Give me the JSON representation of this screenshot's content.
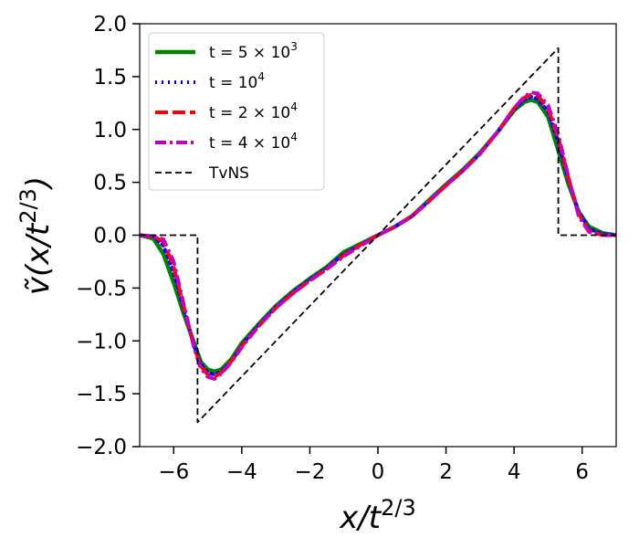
{
  "chart_data": {
    "type": "line",
    "xlabel": "x/t",
    "xlabel_exponent": "2/3",
    "ylabel_prefix": "ṽ(x/t",
    "ylabel_exponent": "2/3",
    "ylabel_suffix": ")",
    "xlim": [
      -7,
      7
    ],
    "ylim": [
      -2,
      2
    ],
    "xticks": [
      -6,
      -4,
      -2,
      0,
      2,
      4,
      6
    ],
    "xtick_labels": [
      "−6",
      "−4",
      "−2",
      "0",
      "2",
      "4",
      "6"
    ],
    "yticks": [
      -2,
      -1.5,
      -1,
      -0.5,
      0,
      0.5,
      1,
      1.5,
      2
    ],
    "ytick_labels": [
      "−2.0",
      "−1.5",
      "−1.0",
      "−0.5",
      "0.0",
      "0.5",
      "1.0",
      "1.5",
      "2.0"
    ],
    "grid": false,
    "legend_position": "top-left",
    "series": [
      {
        "name": "t = 5 × 10³",
        "legend": {
          "base": "t = 5 × 10",
          "sup": "3"
        },
        "color": "#008000",
        "style": "solid",
        "points": [
          [
            -7,
            0
          ],
          [
            -6.6,
            -0.03
          ],
          [
            -6.3,
            -0.18
          ],
          [
            -6.0,
            -0.45
          ],
          [
            -5.7,
            -0.75
          ],
          [
            -5.4,
            -1.02
          ],
          [
            -5.2,
            -1.2
          ],
          [
            -5.0,
            -1.27
          ],
          [
            -4.8,
            -1.29
          ],
          [
            -4.6,
            -1.27
          ],
          [
            -4.3,
            -1.17
          ],
          [
            -4.0,
            -1.02
          ],
          [
            -3.5,
            -0.84
          ],
          [
            -3.0,
            -0.67
          ],
          [
            -2.5,
            -0.53
          ],
          [
            -2.0,
            -0.41
          ],
          [
            -1.5,
            -0.3
          ],
          [
            -1.0,
            -0.16
          ],
          [
            -0.5,
            -0.08
          ],
          [
            0,
            0
          ],
          [
            0.5,
            0.08
          ],
          [
            1.0,
            0.18
          ],
          [
            1.5,
            0.33
          ],
          [
            2.0,
            0.48
          ],
          [
            2.5,
            0.62
          ],
          [
            3.0,
            0.78
          ],
          [
            3.5,
            0.97
          ],
          [
            4.0,
            1.18
          ],
          [
            4.3,
            1.26
          ],
          [
            4.5,
            1.28
          ],
          [
            4.7,
            1.26
          ],
          [
            5.0,
            1.12
          ],
          [
            5.3,
            0.8
          ],
          [
            5.6,
            0.48
          ],
          [
            5.9,
            0.22
          ],
          [
            6.2,
            0.08
          ],
          [
            6.6,
            0.02
          ],
          [
            7,
            0
          ]
        ]
      },
      {
        "name": "t = 10⁴",
        "legend": {
          "base": "t = 10",
          "sup": "4"
        },
        "color": "#0000ff",
        "style": "dotted",
        "points": [
          [
            -7,
            0
          ],
          [
            -6.6,
            -0.01
          ],
          [
            -6.3,
            -0.1
          ],
          [
            -6.0,
            -0.35
          ],
          [
            -5.7,
            -0.7
          ],
          [
            -5.4,
            -1.05
          ],
          [
            -5.2,
            -1.22
          ],
          [
            -5.0,
            -1.3
          ],
          [
            -4.8,
            -1.32
          ],
          [
            -4.6,
            -1.29
          ],
          [
            -4.3,
            -1.19
          ],
          [
            -4.0,
            -1.04
          ],
          [
            -3.5,
            -0.85
          ],
          [
            -3.0,
            -0.68
          ],
          [
            -2.5,
            -0.54
          ],
          [
            -2.0,
            -0.42
          ],
          [
            -1.5,
            -0.31
          ],
          [
            -1.0,
            -0.18
          ],
          [
            -0.5,
            -0.09
          ],
          [
            0,
            0
          ],
          [
            0.5,
            0.08
          ],
          [
            1.0,
            0.18
          ],
          [
            1.5,
            0.32
          ],
          [
            2.0,
            0.47
          ],
          [
            2.5,
            0.61
          ],
          [
            3.0,
            0.77
          ],
          [
            3.5,
            0.97
          ],
          [
            4.0,
            1.19
          ],
          [
            4.3,
            1.28
          ],
          [
            4.5,
            1.31
          ],
          [
            4.7,
            1.29
          ],
          [
            5.0,
            1.17
          ],
          [
            5.3,
            0.88
          ],
          [
            5.6,
            0.52
          ],
          [
            5.9,
            0.22
          ],
          [
            6.2,
            0.06
          ],
          [
            6.6,
            0.01
          ],
          [
            7,
            0
          ]
        ]
      },
      {
        "name": "t = 2 × 10⁴",
        "legend": {
          "base": "t = 2 × 10",
          "sup": "4"
        },
        "color": "#ff0000",
        "style": "dashed",
        "points": [
          [
            -7,
            0
          ],
          [
            -6.6,
            -0.01
          ],
          [
            -6.3,
            -0.06
          ],
          [
            -6.0,
            -0.3
          ],
          [
            -5.7,
            -0.68
          ],
          [
            -5.4,
            -1.06
          ],
          [
            -5.2,
            -1.24
          ],
          [
            -5.0,
            -1.32
          ],
          [
            -4.8,
            -1.34
          ],
          [
            -4.6,
            -1.3
          ],
          [
            -4.3,
            -1.19
          ],
          [
            -4.0,
            -1.05
          ],
          [
            -3.5,
            -0.86
          ],
          [
            -3.0,
            -0.69
          ],
          [
            -2.5,
            -0.55
          ],
          [
            -2.0,
            -0.43
          ],
          [
            -1.5,
            -0.32
          ],
          [
            -1.0,
            -0.19
          ],
          [
            -0.5,
            -0.09
          ],
          [
            0,
            0
          ],
          [
            0.5,
            0.08
          ],
          [
            1.0,
            0.18
          ],
          [
            1.5,
            0.32
          ],
          [
            2.0,
            0.47
          ],
          [
            2.5,
            0.61
          ],
          [
            3.0,
            0.77
          ],
          [
            3.5,
            0.97
          ],
          [
            4.0,
            1.2
          ],
          [
            4.3,
            1.3
          ],
          [
            4.5,
            1.33
          ],
          [
            4.7,
            1.32
          ],
          [
            5.0,
            1.2
          ],
          [
            5.3,
            0.92
          ],
          [
            5.6,
            0.54
          ],
          [
            5.9,
            0.2
          ],
          [
            6.2,
            0.04
          ],
          [
            6.6,
            0
          ],
          [
            7,
            0
          ]
        ]
      },
      {
        "name": "t = 4 × 10⁴",
        "legend": {
          "base": "t = 4 × 10",
          "sup": "4"
        },
        "color": "#bf00bf",
        "style": "dashdot",
        "points": [
          [
            -7,
            0
          ],
          [
            -6.6,
            -0.01
          ],
          [
            -6.3,
            -0.04
          ],
          [
            -6.0,
            -0.25
          ],
          [
            -5.7,
            -0.66
          ],
          [
            -5.4,
            -1.07
          ],
          [
            -5.2,
            -1.26
          ],
          [
            -5.0,
            -1.34
          ],
          [
            -4.8,
            -1.36
          ],
          [
            -4.6,
            -1.31
          ],
          [
            -4.3,
            -1.2
          ],
          [
            -4.0,
            -1.06
          ],
          [
            -3.5,
            -0.86
          ],
          [
            -3.0,
            -0.69
          ],
          [
            -2.5,
            -0.55
          ],
          [
            -2.0,
            -0.43
          ],
          [
            -1.5,
            -0.32
          ],
          [
            -1.0,
            -0.2
          ],
          [
            -0.5,
            -0.1
          ],
          [
            0,
            0
          ],
          [
            0.5,
            0.08
          ],
          [
            1.0,
            0.18
          ],
          [
            1.5,
            0.32
          ],
          [
            2.0,
            0.47
          ],
          [
            2.5,
            0.61
          ],
          [
            3.0,
            0.77
          ],
          [
            3.5,
            0.97
          ],
          [
            4.0,
            1.2
          ],
          [
            4.3,
            1.31
          ],
          [
            4.5,
            1.35
          ],
          [
            4.7,
            1.34
          ],
          [
            5.0,
            1.23
          ],
          [
            5.3,
            0.95
          ],
          [
            5.6,
            0.55
          ],
          [
            5.9,
            0.18
          ],
          [
            6.2,
            0.03
          ],
          [
            6.6,
            0
          ],
          [
            7,
            0
          ]
        ]
      },
      {
        "name": "TvNS",
        "legend": {
          "base": "TvNS",
          "sup": ""
        },
        "color": "#000000",
        "style": "thin-dashed",
        "points": [
          [
            -7,
            0
          ],
          [
            -5.3,
            0
          ],
          [
            -5.3,
            -1.77
          ],
          [
            5.3,
            1.77
          ],
          [
            5.3,
            0
          ],
          [
            7,
            0
          ]
        ]
      }
    ]
  }
}
